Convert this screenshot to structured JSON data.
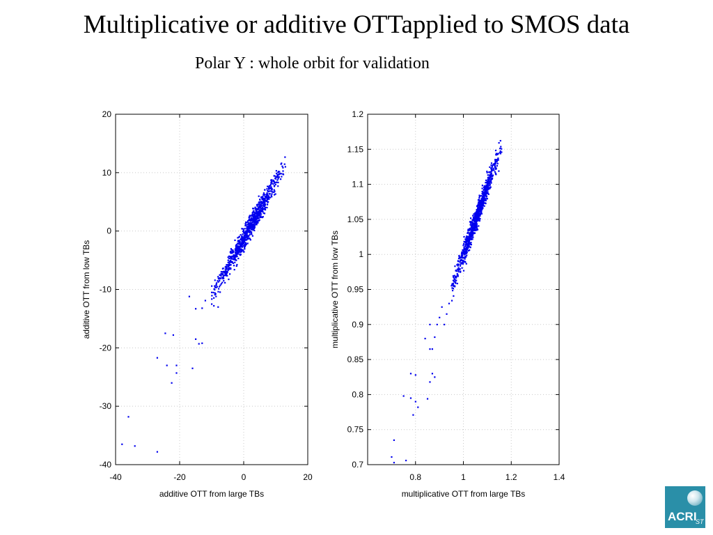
{
  "slide": {
    "title": "Multiplicative or additive OTTapplied to SMOS data",
    "subtitle": "Polar Y : whole orbit for validation"
  },
  "logo": {
    "text": "ACRI",
    "number": "ST"
  },
  "colors": {
    "points": "#0000ee",
    "grid": "#c8c8c8",
    "axis": "#000000",
    "logo_bg": "#2a8fa8"
  },
  "chart_data": [
    {
      "type": "scatter",
      "xlabel": "additive OTT from large TBs",
      "ylabel": "additive OTT from low TBs",
      "xlim": [
        -40,
        20
      ],
      "ylim": [
        -40,
        20
      ],
      "xticks": [
        -40,
        -20,
        0,
        20
      ],
      "yticks": [
        -40,
        -30,
        -20,
        -10,
        0,
        10,
        20
      ],
      "xtick_labels": [
        "-40",
        "-20",
        "0",
        "20"
      ],
      "ytick_labels": [
        "-40",
        "-30",
        "-20",
        "-10",
        "0",
        "10",
        "20"
      ],
      "grid": true,
      "outliers": [
        [
          -38,
          -36.5
        ],
        [
          -34,
          -36.8
        ],
        [
          -36,
          -31.8
        ],
        [
          -27,
          -37.8
        ],
        [
          -27,
          -21.7
        ],
        [
          -24.5,
          -17.5
        ],
        [
          -22,
          -17.8
        ],
        [
          -24,
          -23
        ],
        [
          -22.5,
          -26
        ],
        [
          -21,
          -23
        ],
        [
          -21,
          -24.3
        ],
        [
          -16,
          -23.5
        ],
        [
          -15,
          -18.5
        ],
        [
          -14,
          -19.3
        ],
        [
          -13,
          -19.2
        ],
        [
          -17,
          -11.2
        ],
        [
          -15,
          -13.3
        ],
        [
          -13,
          -13.2
        ],
        [
          -12,
          -11.9
        ],
        [
          -10,
          -12.5
        ],
        [
          -8,
          -13
        ],
        [
          -10,
          -10.5
        ],
        [
          -9,
          -10.6
        ]
      ],
      "main_cluster": {
        "x_range": [
          -10,
          13
        ],
        "slope": 0.98,
        "intercept": -1.3,
        "spread": 0.9,
        "point_count": 900
      }
    },
    {
      "type": "scatter",
      "xlabel": "multiplicative OTT from large TBs",
      "ylabel": "multiplicative OTT from low TBs",
      "xlim": [
        0.6,
        1.4
      ],
      "ylim": [
        0.7,
        1.2
      ],
      "xticks": [
        0.8,
        1,
        1.2,
        1.4
      ],
      "yticks": [
        0.7,
        0.75,
        0.8,
        0.85,
        0.9,
        0.95,
        1,
        1.05,
        1.1,
        1.15,
        1.2
      ],
      "xtick_labels": [
        "0.8",
        "1",
        "1.2",
        "1.4"
      ],
      "ytick_labels": [
        "0.7",
        "0.75",
        "0.8",
        "0.85",
        "0.9",
        "0.95",
        "1",
        "1.05",
        "1.1",
        "1.15",
        "1.2"
      ],
      "grid": true,
      "outliers": [
        [
          0.7,
          0.711
        ],
        [
          0.71,
          0.735
        ],
        [
          0.71,
          0.703
        ],
        [
          0.76,
          0.706
        ],
        [
          0.78,
          0.83
        ],
        [
          0.8,
          0.828
        ],
        [
          0.75,
          0.798
        ],
        [
          0.78,
          0.795
        ],
        [
          0.8,
          0.79
        ],
        [
          0.81,
          0.782
        ],
        [
          0.79,
          0.771
        ],
        [
          0.85,
          0.794
        ],
        [
          0.86,
          0.818
        ],
        [
          0.87,
          0.83
        ],
        [
          0.88,
          0.825
        ],
        [
          0.84,
          0.88
        ],
        [
          0.86,
          0.865
        ],
        [
          0.87,
          0.865
        ],
        [
          0.88,
          0.882
        ],
        [
          0.86,
          0.9
        ],
        [
          0.89,
          0.9
        ],
        [
          0.9,
          0.91
        ],
        [
          0.92,
          0.9
        ],
        [
          0.93,
          0.915
        ],
        [
          0.91,
          0.925
        ],
        [
          0.94,
          0.93
        ]
      ],
      "main_cluster": {
        "x_range": [
          0.95,
          1.16
        ],
        "slope": 0.97,
        "intercept": 0.03,
        "spread": 0.008,
        "point_count": 900
      }
    }
  ]
}
